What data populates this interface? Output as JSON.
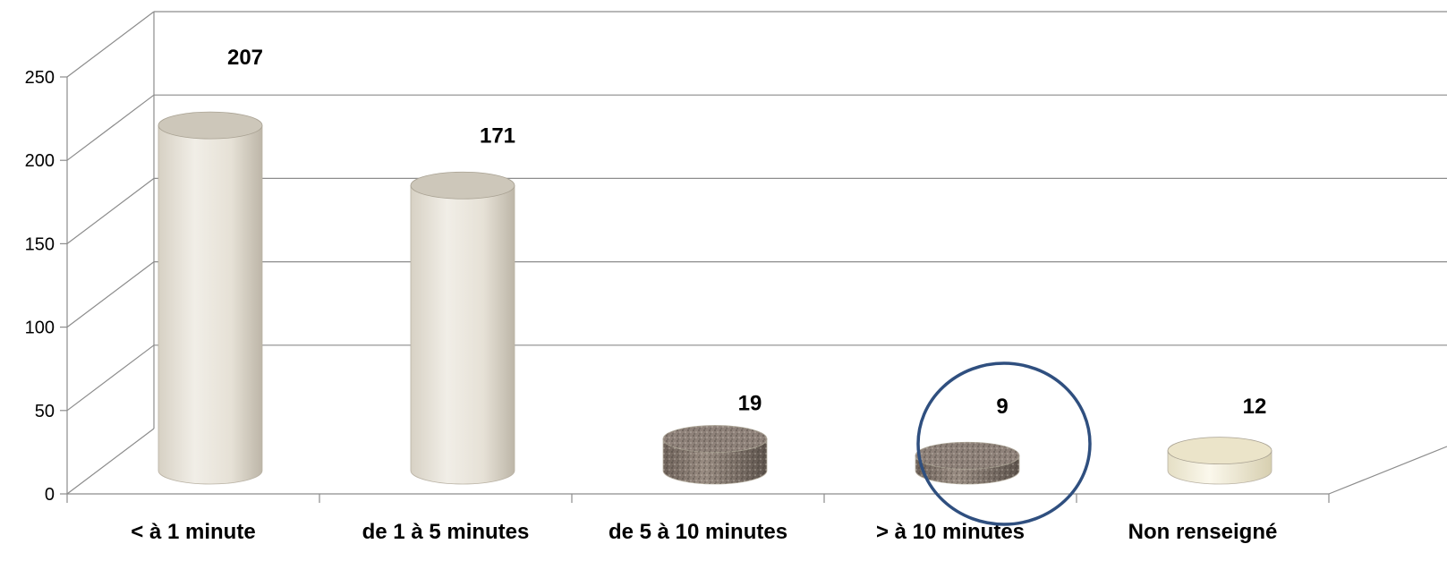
{
  "chart_data": {
    "type": "bar",
    "style": "3d-cylinder",
    "categories": [
      "< à 1 minute",
      "de 1 à 5 minutes",
      "de 5 à 10 minutes",
      "> à 10 minutes",
      "Non renseigné"
    ],
    "values": [
      207,
      171,
      19,
      9,
      12
    ],
    "data_labels": [
      "207",
      "171",
      "19",
      "9",
      "12"
    ],
    "yticks": [
      "0",
      "50",
      "100",
      "150",
      "200",
      "250"
    ],
    "ylim": [
      0,
      250
    ],
    "grid": true,
    "highlight": {
      "category": "> à 10 minutes",
      "marker": "circle",
      "color": "#2f4f7f"
    },
    "colors": {
      "light_cylinder": "#e8e4da",
      "dark_cylinder": "#8a7d73",
      "cream_cylinder": "#f1ecd6",
      "grid": "#8c8c8c"
    }
  }
}
